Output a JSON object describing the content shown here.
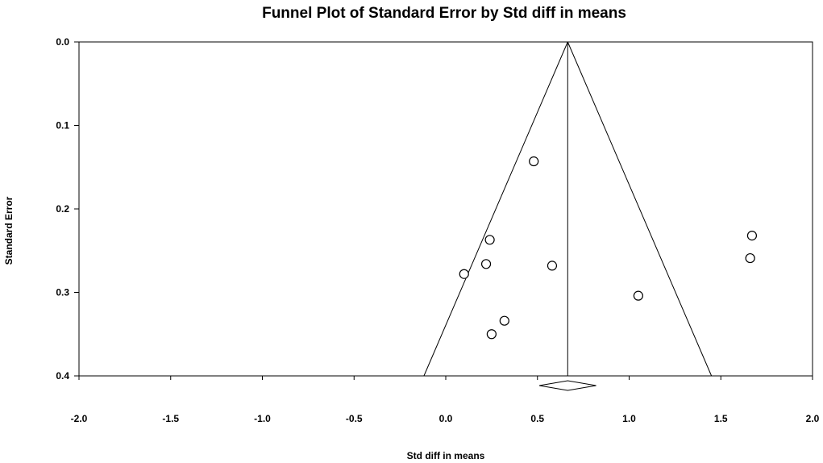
{
  "chart_data": {
    "type": "scatter",
    "subtype": "funnel-plot",
    "title": "Funnel Plot of Standard Error by Std diff in means",
    "xlabel": "Std diff in means",
    "ylabel": "Standard Error",
    "xlim": [
      -2.0,
      2.0
    ],
    "ylim": [
      0.0,
      0.4
    ],
    "y_inverted": true,
    "x_ticks": [
      "-2.0",
      "-1.5",
      "-1.0",
      "-0.5",
      "0.0",
      "0.5",
      "1.0",
      "1.5",
      "2.0"
    ],
    "y_ticks": [
      "0.0",
      "0.1",
      "0.2",
      "0.3",
      "0.4"
    ],
    "grid": false,
    "pooled_estimate": 0.665,
    "funnel_z": 1.96,
    "pooled_diamond": {
      "lower": 0.51,
      "upper": 0.82
    },
    "points": [
      {
        "x": 0.48,
        "y": 0.143
      },
      {
        "x": 0.24,
        "y": 0.237
      },
      {
        "x": 1.67,
        "y": 0.232
      },
      {
        "x": 1.66,
        "y": 0.259
      },
      {
        "x": 0.22,
        "y": 0.266
      },
      {
        "x": 0.58,
        "y": 0.268
      },
      {
        "x": 0.1,
        "y": 0.278
      },
      {
        "x": 1.05,
        "y": 0.304
      },
      {
        "x": 0.32,
        "y": 0.334
      },
      {
        "x": 0.25,
        "y": 0.35
      }
    ]
  }
}
